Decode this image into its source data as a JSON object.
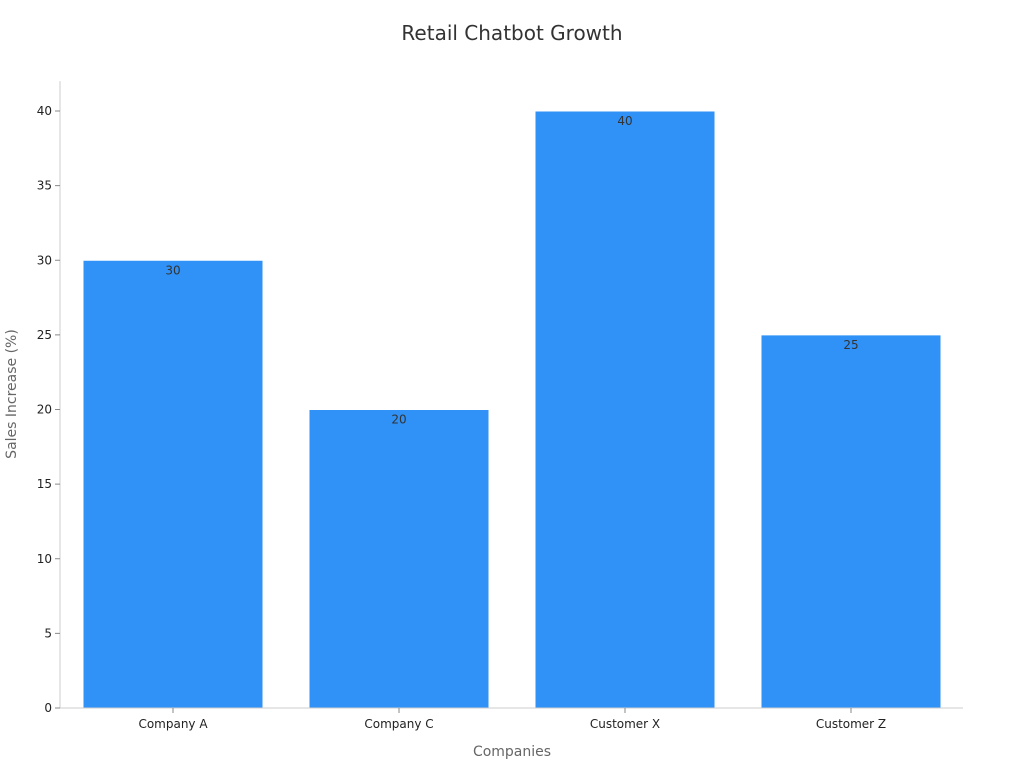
{
  "chart_data": {
    "type": "bar",
    "title": "Retail Chatbot Growth",
    "xlabel": "Companies",
    "ylabel": "Sales Increase (%)",
    "categories": [
      "Company A",
      "Company C",
      "Customer X",
      "Customer Z"
    ],
    "values": [
      30,
      20,
      40,
      25
    ],
    "ylim": [
      0,
      42
    ],
    "yticks": [
      0,
      5,
      10,
      15,
      20,
      25,
      30,
      35,
      40
    ],
    "bar_color": "#3092f7",
    "grid": false,
    "legend": "none"
  }
}
